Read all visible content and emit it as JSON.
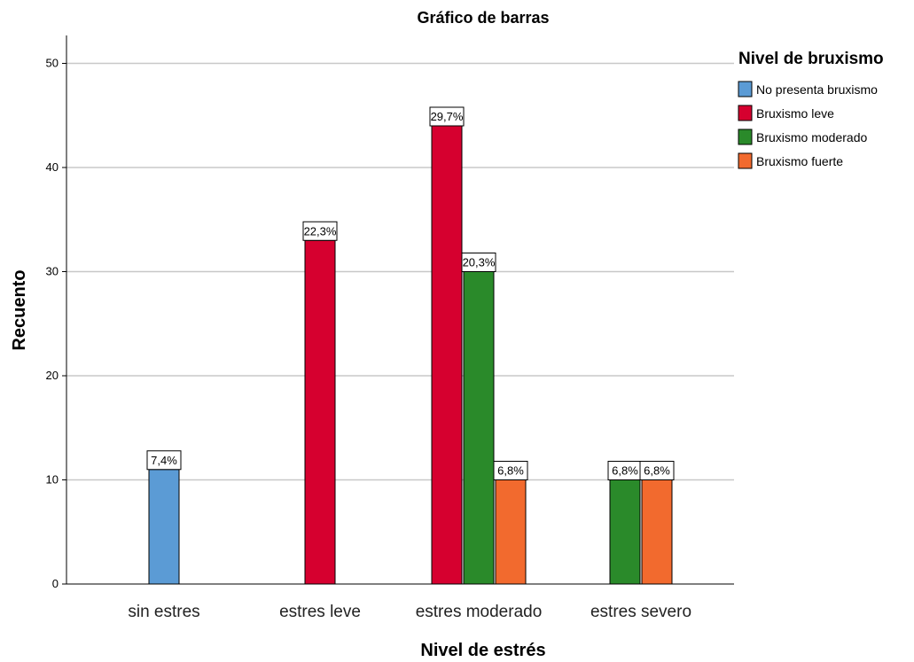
{
  "chart_data": {
    "type": "bar",
    "title": "Gráfico de barras",
    "xlabel": "Nivel de estrés",
    "ylabel": "Recuento",
    "ylim": [
      0,
      52
    ],
    "yticks": [
      0,
      10,
      20,
      30,
      40,
      50
    ],
    "grid": true,
    "legend_position": "top-right",
    "legend_title": "Nivel de bruxismo",
    "categories": [
      "sin estres",
      "estres leve",
      "estres moderado",
      "estres severo"
    ],
    "series": [
      {
        "name": "No presenta bruxismo",
        "color": "#5b9bd5",
        "values": [
          11,
          null,
          null,
          null
        ],
        "labels": [
          "7,4%",
          null,
          null,
          null
        ]
      },
      {
        "name": "Bruxismo leve",
        "color": "#d6002f",
        "values": [
          null,
          33,
          44,
          null
        ],
        "labels": [
          null,
          "22,3%",
          "29,7%",
          null
        ]
      },
      {
        "name": "Bruxismo moderado",
        "color": "#2a8a2a",
        "values": [
          null,
          null,
          30,
          10
        ],
        "labels": [
          null,
          null,
          "20,3%",
          "6,8%"
        ]
      },
      {
        "name": "Bruxismo fuerte",
        "color": "#f26a2e",
        "values": [
          null,
          null,
          10,
          10
        ],
        "labels": [
          null,
          null,
          "6,8%",
          "6,8%"
        ]
      }
    ]
  }
}
